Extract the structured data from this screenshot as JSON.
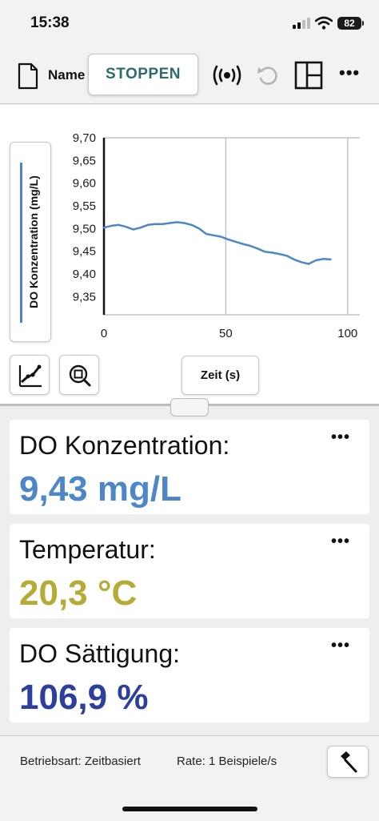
{
  "status_bar": {
    "time": "15:38",
    "battery": "82"
  },
  "toolbar": {
    "name_label": "Name",
    "stop_label": "STOPPEN",
    "more_label": "•••"
  },
  "graph": {
    "y_axis_button_label": "DO Konzentration (mg/L)",
    "x_axis_button_label": "Zeit (s)"
  },
  "chart_data": {
    "type": "line",
    "xlabel": "Zeit (s)",
    "ylabel": "DO Konzentration (mg/L)",
    "xlim": [
      0,
      105
    ],
    "ylim": [
      9.31,
      9.7
    ],
    "x_ticks": [
      0,
      50,
      100
    ],
    "x_tick_labels": [
      "0",
      "50",
      "100"
    ],
    "y_ticks": [
      9.35,
      9.4,
      9.45,
      9.5,
      9.55,
      9.6,
      9.65,
      9.7
    ],
    "y_tick_labels": [
      "9,35",
      "9,40",
      "9,45",
      "9,50",
      "9,55",
      "9,60",
      "9,65",
      "9,70"
    ],
    "grid_x": true,
    "grid_y": false,
    "series": [
      {
        "color": "#4d87c7",
        "x": [
          0,
          3,
          6,
          9,
          12,
          15,
          18,
          21,
          24,
          27,
          30,
          33,
          36,
          39,
          42,
          45,
          48,
          51,
          54,
          57,
          60,
          63,
          66,
          69,
          72,
          75,
          78,
          81,
          84,
          87,
          90,
          93
        ],
        "y": [
          9.502,
          9.506,
          9.508,
          9.504,
          9.498,
          9.502,
          9.508,
          9.51,
          9.51,
          9.512,
          9.514,
          9.512,
          9.508,
          9.5,
          9.488,
          9.485,
          9.482,
          9.476,
          9.471,
          9.466,
          9.462,
          9.456,
          9.449,
          9.447,
          9.444,
          9.44,
          9.432,
          9.426,
          9.422,
          9.43,
          9.433,
          9.432
        ]
      }
    ]
  },
  "meters": [
    {
      "title": "DO Konzentration:",
      "value": "9,43 mg/L",
      "color": "#4d87c7"
    },
    {
      "title": "Temperatur:",
      "value": "20,3 °C",
      "color": "#b5ac37"
    },
    {
      "title": "DO Sättigung:",
      "value": "106,9 %",
      "color": "#2c3f9c"
    }
  ],
  "meter_more_label": "•••",
  "footer": {
    "mode": "Betriebsart: Zeitbasiert",
    "rate": "Rate: 1 Beispiele/s"
  },
  "icons": {
    "file": "document-icon",
    "broadcast": "broadcast-icon",
    "undo": "undo-icon",
    "layout": "layout-icon",
    "graph_tools": "graph-tools-icon",
    "zoom": "zoom-icon",
    "settings": "hammer-icon"
  }
}
